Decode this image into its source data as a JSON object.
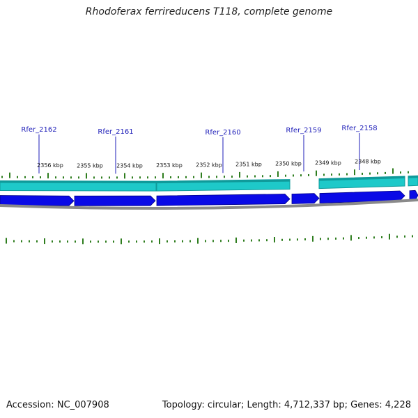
{
  "title": "Rhodoferax ferrireducens T118, complete genome",
  "footer": {
    "accession": "Accession: NC_007908",
    "summary": "Topology: circular; Length: 4,712,337 bp; Genes: 4,228"
  },
  "colors": {
    "gene_label": "#1c1cb8",
    "tick": "#2e7d1e",
    "cds_band": "#1ec9c9",
    "cds_band_dark": "#0f9a9a",
    "gene_arrow": "#0a0ae6",
    "backbone": "#8a8a8a"
  },
  "map": {
    "genes": [
      {
        "label": "Rfer_2162"
      },
      {
        "label": "Rfer_2161"
      },
      {
        "label": "Rfer_2160"
      },
      {
        "label": "Rfer_2159"
      },
      {
        "label": "Rfer_2158"
      }
    ],
    "kbp_ticks": [
      {
        "label": "2356 kbp"
      },
      {
        "label": "2355 kbp"
      },
      {
        "label": "2354 kbp"
      },
      {
        "label": "2353 kbp"
      },
      {
        "label": "2352 kbp"
      },
      {
        "label": "2351 kbp"
      },
      {
        "label": "2350 kbp"
      },
      {
        "label": "2349 kbp"
      },
      {
        "label": "2348 kbp"
      }
    ]
  }
}
